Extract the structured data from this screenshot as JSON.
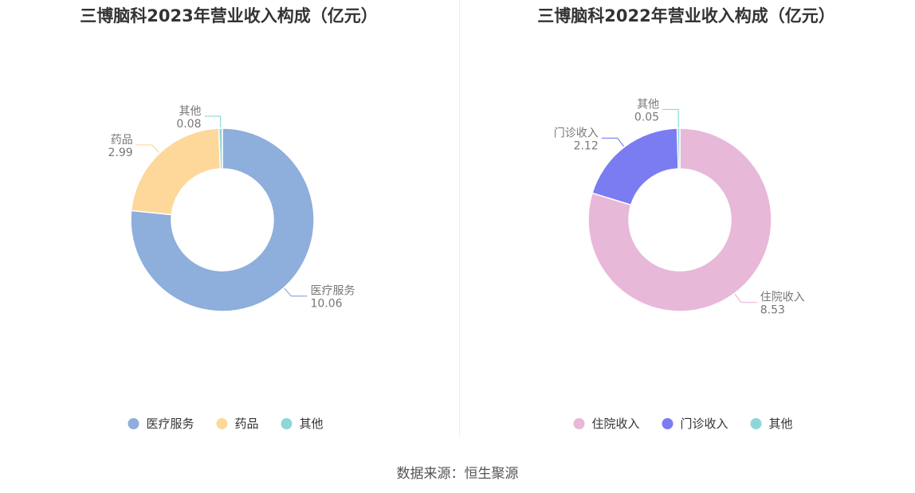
{
  "charts": [
    {
      "title": "三博脑科2023年营业收入构成（亿元）"
    },
    {
      "title": "三博脑科2022年营业收入构成（亿元）"
    }
  ],
  "source": "数据来源：恒生聚源",
  "chart_data": [
    {
      "type": "pie",
      "variant": "donut",
      "title": "三博脑科2023年营业收入构成（亿元）",
      "unit": "亿元",
      "legend_position": "bottom",
      "slices": [
        {
          "name": "医疗服务",
          "value": 10.06,
          "value_label": "10.06",
          "color": "#8eaedb"
        },
        {
          "name": "药品",
          "value": 2.99,
          "value_label": "2.99",
          "color": "#fdd89a"
        },
        {
          "name": "其他",
          "value": 0.08,
          "value_label": "0.08",
          "color": "#8fd6d8"
        }
      ]
    },
    {
      "type": "pie",
      "variant": "donut",
      "title": "三博脑科2022年营业收入构成（亿元）",
      "unit": "亿元",
      "legend_position": "bottom",
      "slices": [
        {
          "name": "住院收入",
          "value": 8.53,
          "value_label": "8.53",
          "color": "#e8b8d8"
        },
        {
          "name": "门诊收入",
          "value": 2.12,
          "value_label": "2.12",
          "color": "#7b7cf2"
        },
        {
          "name": "其他",
          "value": 0.05,
          "value_label": "0.05",
          "color": "#8fd6d8"
        }
      ]
    }
  ]
}
